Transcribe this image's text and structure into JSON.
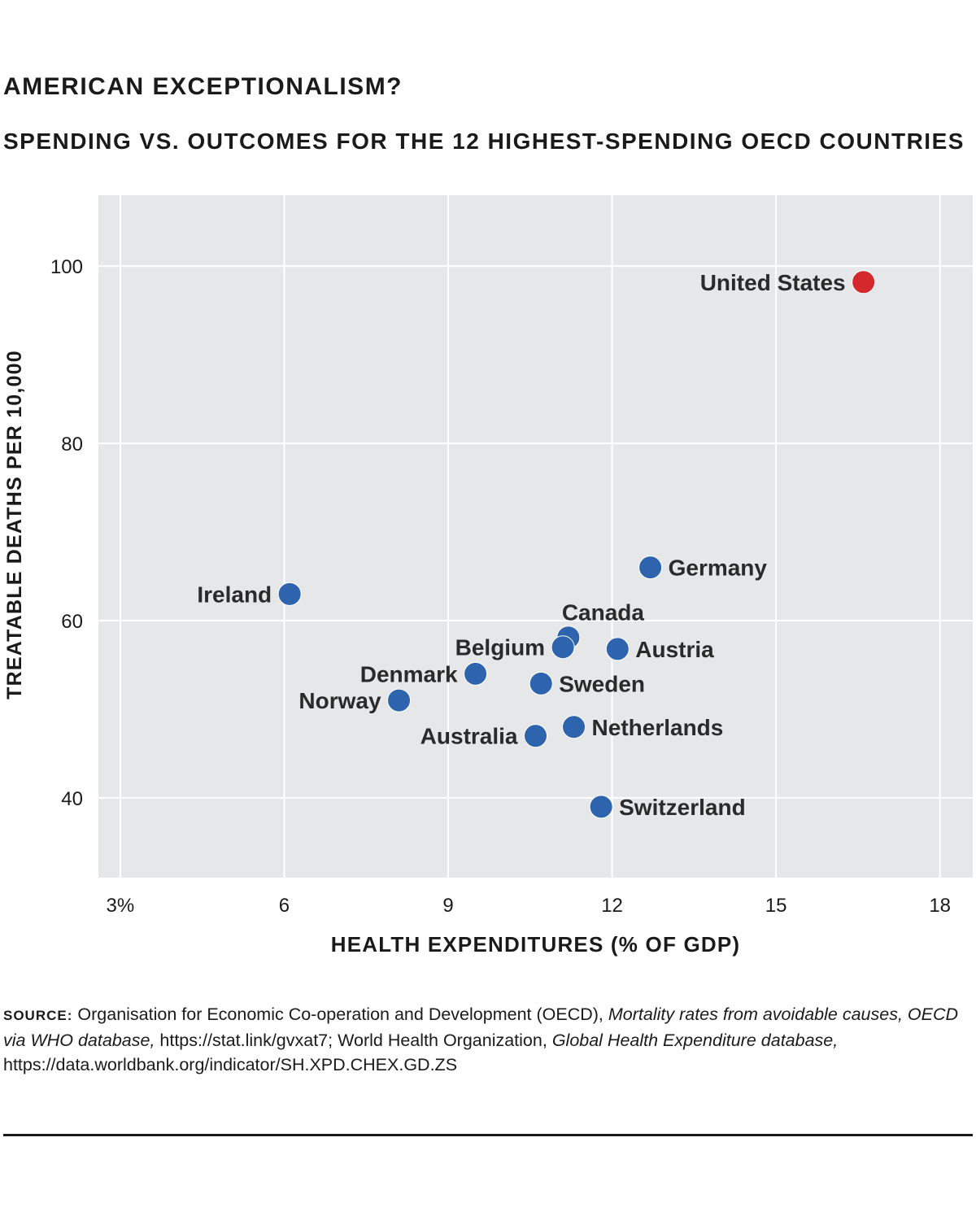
{
  "header": {
    "title": "AMERICAN EXCEPTIONALISM?",
    "subtitle": "SPENDING VS. OUTCOMES FOR THE 12 HIGHEST-SPENDING OECD COUNTRIES"
  },
  "chart_data": {
    "type": "scatter",
    "title": "AMERICAN EXCEPTIONALISM?",
    "subtitle": "SPENDING VS. OUTCOMES FOR THE 12 HIGHEST-SPENDING OECD COUNTRIES",
    "xlabel": "HEALTH EXPENDITURES (% OF GDP)",
    "ylabel": "TREATABLE DEATHS PER 10,000",
    "xlim": [
      2.6,
      18.6
    ],
    "ylim": [
      31,
      108
    ],
    "xticks": [
      3,
      6,
      9,
      12,
      15,
      18
    ],
    "xtick_labels": [
      "3%",
      "6",
      "9",
      "12",
      "15",
      "18"
    ],
    "yticks": [
      40,
      60,
      80,
      100
    ],
    "ytick_labels": [
      "40",
      "60",
      "80",
      "100"
    ],
    "grid": true,
    "background_color": "#e6e7e8",
    "colors": {
      "default": "#2e64ae",
      "highlight": "#d3282c"
    },
    "points": [
      {
        "label": "United States",
        "x": 16.6,
        "y": 98.2,
        "highlight": true,
        "label_side": "left"
      },
      {
        "label": "Germany",
        "x": 12.7,
        "y": 66.0,
        "highlight": false,
        "label_side": "right"
      },
      {
        "label": "Ireland",
        "x": 6.1,
        "y": 63.0,
        "highlight": false,
        "label_side": "left"
      },
      {
        "label": "Canada",
        "x": 11.2,
        "y": 58.1,
        "highlight": false,
        "label_side": "above"
      },
      {
        "label": "Belgium",
        "x": 11.1,
        "y": 57.0,
        "highlight": false,
        "label_side": "left"
      },
      {
        "label": "Austria",
        "x": 12.1,
        "y": 56.8,
        "highlight": false,
        "label_side": "right"
      },
      {
        "label": "Denmark",
        "x": 9.5,
        "y": 54.0,
        "highlight": false,
        "label_side": "left"
      },
      {
        "label": "Sweden",
        "x": 10.7,
        "y": 52.9,
        "highlight": false,
        "label_side": "right"
      },
      {
        "label": "Norway",
        "x": 8.1,
        "y": 51.0,
        "highlight": false,
        "label_side": "left"
      },
      {
        "label": "Netherlands",
        "x": 11.3,
        "y": 48.0,
        "highlight": false,
        "label_side": "right"
      },
      {
        "label": "Australia",
        "x": 10.6,
        "y": 47.0,
        "highlight": false,
        "label_side": "left"
      },
      {
        "label": "Switzerland",
        "x": 11.8,
        "y": 39.0,
        "highlight": false,
        "label_side": "right"
      }
    ]
  },
  "source": {
    "label": "SOURCE:",
    "text1": "Organisation for Economic Co-operation and Development (OECD),",
    "italic1": "Mortality rates from avoidable causes, OECD via WHO database,",
    "text2": "https://stat.link/gvxat7;  World Health Organization,",
    "italic2": "Global Health Expenditure database,",
    "text3": "https://data.worldbank.org/indicator/SH.XPD.CHEX.GD.ZS"
  }
}
